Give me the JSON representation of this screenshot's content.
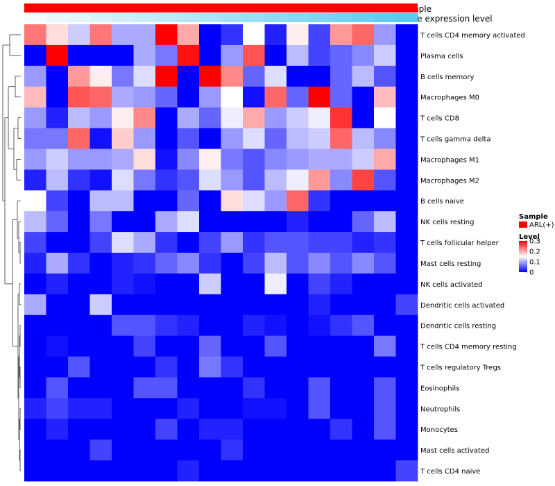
{
  "chart_data": {
    "type": "heatmap",
    "title": "",
    "annotation_tracks": [
      {
        "name": "Sample",
        "color": "#ff0000"
      },
      {
        "name": "Gene expression level",
        "color_low": "#f6fbfe",
        "color_high": "#5ac8f0"
      }
    ],
    "rows": [
      "T cells CD4 memory activated",
      "Plasma cells",
      "B cells memory",
      "Macrophages M0",
      "T cells CD8",
      "T cells gamma delta",
      "Macrophages M1",
      "Macrophages M2",
      "B cells naive",
      "NK cells resting",
      "T cells follicular helper",
      "Mast cells resting",
      "NK cells activated",
      "Dendritic cells activated",
      "Dendritic cells resting",
      "T cells CD4 memory resting",
      "T cells regulatory  Tregs",
      "Eosinophils",
      "Neutrophils",
      "Monocytes",
      "Mast cells activated",
      "T cells CD4 naive"
    ],
    "n_columns": 18,
    "values": [
      [
        0.23,
        0.17,
        0.12,
        0.23,
        0.1,
        0.1,
        0.3,
        0.2,
        0.0,
        0.03,
        0.15,
        0.02,
        0.16,
        0.04,
        0.21,
        0.24,
        0.09,
        0.0
      ],
      [
        0.0,
        0.3,
        0.0,
        0.0,
        0.0,
        0.1,
        0.07,
        0.29,
        0.0,
        0.09,
        0.25,
        0.0,
        0.11,
        0.04,
        0.06,
        0.08,
        0.12,
        0.0
      ],
      [
        0.09,
        0.0,
        0.21,
        0.16,
        0.07,
        0.13,
        0.3,
        0.0,
        0.3,
        0.22,
        0.06,
        0.13,
        0.0,
        0.0,
        0.06,
        0.11,
        0.05,
        0.0
      ],
      [
        0.19,
        0.0,
        0.25,
        0.24,
        0.1,
        0.09,
        0.06,
        0.0,
        0.09,
        0.15,
        0.01,
        0.24,
        0.06,
        0.3,
        0.06,
        0.0,
        0.19,
        0.0
      ],
      [
        0.09,
        0.02,
        0.11,
        0.09,
        0.16,
        0.22,
        0.0,
        0.1,
        0.06,
        0.14,
        0.2,
        0.09,
        0.12,
        0.14,
        0.27,
        0.0,
        0.15,
        0.0
      ],
      [
        0.07,
        0.07,
        0.24,
        0.01,
        0.18,
        0.09,
        0.0,
        0.05,
        0.0,
        0.09,
        0.13,
        0.06,
        0.11,
        0.12,
        0.24,
        0.11,
        0.08,
        0.0
      ],
      [
        0.09,
        0.12,
        0.09,
        0.09,
        0.1,
        0.17,
        0.01,
        0.08,
        0.16,
        0.07,
        0.05,
        0.08,
        0.09,
        0.1,
        0.1,
        0.12,
        0.2,
        0.0
      ],
      [
        0.02,
        0.11,
        0.03,
        0.01,
        0.13,
        0.07,
        0.03,
        0.05,
        0.13,
        0.09,
        0.05,
        0.11,
        0.14,
        0.21,
        0.08,
        0.26,
        0.05,
        0.0
      ],
      [
        0.15,
        0.04,
        0.0,
        0.11,
        0.11,
        0.0,
        0.0,
        0.06,
        0.0,
        0.17,
        0.13,
        0.09,
        0.24,
        0.03,
        0.0,
        0.0,
        0.0,
        0.0
      ],
      [
        0.11,
        0.06,
        0.0,
        0.07,
        0.0,
        0.0,
        0.1,
        0.13,
        0.0,
        0.0,
        0.0,
        0.0,
        0.02,
        0.0,
        0.0,
        0.06,
        0.11,
        0.0
      ],
      [
        0.04,
        0.0,
        0.0,
        0.04,
        0.13,
        0.1,
        0.03,
        0.0,
        0.04,
        0.09,
        0.03,
        0.05,
        0.05,
        0.04,
        0.04,
        0.02,
        0.03,
        0.0
      ],
      [
        0.02,
        0.1,
        0.03,
        0.0,
        0.02,
        0.03,
        0.06,
        0.08,
        0.03,
        0.0,
        0.04,
        0.11,
        0.05,
        0.08,
        0.05,
        0.08,
        0.05,
        0.0
      ],
      [
        0.0,
        0.02,
        0.0,
        0.0,
        0.02,
        0.01,
        0.0,
        0.0,
        0.12,
        0.0,
        0.0,
        0.14,
        0.0,
        0.04,
        0.02,
        0.0,
        0.0,
        0.0
      ],
      [
        0.1,
        0.0,
        0.0,
        0.12,
        0.0,
        0.0,
        0.0,
        0.0,
        0.0,
        0.0,
        0.0,
        0.0,
        0.0,
        0.02,
        0.0,
        0.0,
        0.0,
        0.04
      ],
      [
        0.0,
        0.0,
        0.0,
        0.0,
        0.05,
        0.05,
        0.03,
        0.02,
        0.0,
        0.0,
        0.02,
        0.01,
        0.0,
        0.01,
        0.03,
        0.05,
        0.0,
        0.0
      ],
      [
        0.0,
        0.01,
        0.0,
        0.0,
        0.0,
        0.04,
        0.0,
        0.0,
        0.06,
        0.0,
        0.0,
        0.05,
        0.0,
        0.0,
        0.0,
        0.0,
        0.07,
        0.0
      ],
      [
        0.0,
        0.0,
        0.05,
        0.0,
        0.0,
        0.0,
        0.03,
        0.0,
        0.07,
        0.03,
        0.0,
        0.0,
        0.0,
        0.0,
        0.0,
        0.0,
        0.0,
        0.0
      ],
      [
        0.0,
        0.05,
        0.0,
        0.0,
        0.0,
        0.05,
        0.05,
        0.0,
        0.0,
        0.0,
        0.03,
        0.0,
        0.0,
        0.05,
        0.0,
        0.0,
        0.05,
        0.0
      ],
      [
        0.02,
        0.04,
        0.02,
        0.02,
        0.0,
        0.0,
        0.0,
        0.02,
        0.0,
        0.0,
        0.01,
        0.01,
        0.0,
        0.05,
        0.0,
        0.0,
        0.05,
        0.0
      ],
      [
        0.0,
        0.02,
        0.0,
        0.0,
        0.0,
        0.0,
        0.04,
        0.0,
        0.02,
        0.02,
        0.0,
        0.0,
        0.0,
        0.0,
        0.03,
        0.0,
        0.05,
        0.0
      ],
      [
        0.0,
        0.0,
        0.0,
        0.04,
        0.0,
        0.0,
        0.0,
        0.0,
        0.0,
        0.03,
        0.0,
        0.0,
        0.0,
        0.0,
        0.0,
        0.0,
        0.0,
        0.0
      ],
      [
        0.0,
        0.0,
        0.0,
        0.0,
        0.0,
        0.0,
        0.0,
        0.02,
        0.0,
        0.0,
        0.0,
        0.0,
        0.0,
        0.0,
        0.0,
        0.0,
        0.0,
        0.04
      ]
    ],
    "color_scale": {
      "low": "#0000ff",
      "mid": "#ffffff",
      "high": "#ff0000",
      "min": 0,
      "mid_value": 0.15,
      "max": 0.3
    },
    "legend": {
      "sample_title": "Sample",
      "sample_entry": "ARL(+)",
      "level_title": "Level",
      "level_ticks": [
        "0.3",
        "0.2",
        "0.1",
        "0"
      ],
      "level_tick_values": [
        0.3,
        0.2,
        0.1,
        0
      ],
      "placement": "right"
    }
  }
}
